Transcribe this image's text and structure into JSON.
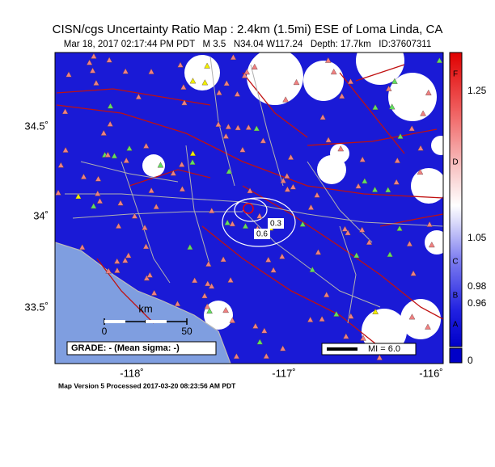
{
  "header": {
    "title": "CISN/cgs Uncertainty Ratio Map : 2.4km (1.5mi) ESE of Loma Linda, CA",
    "subtitle": "Mar 18, 2017 02:17:44 PM PDT   M 3.5   N34.04 W117.24   Depth: 17.7km   ID:37607311"
  },
  "map": {
    "lat_labels": [
      "34.5˚",
      "34˚",
      "33.5˚"
    ],
    "lon_labels": [
      "-118˚",
      "-117˚",
      "-116˚"
    ],
    "contour_labels": [
      "0.3",
      "0.6"
    ],
    "scale": {
      "unit": "km",
      "ticks": [
        "0",
        "50"
      ]
    },
    "grade": "GRADE: - (Mean sigma: -)",
    "mi": "MI = 6.0"
  },
  "colorbar": {
    "letters": [
      "F",
      "D",
      "C",
      "B",
      "A"
    ],
    "values": [
      "1.25",
      "1.05",
      "0.98",
      "0.96",
      "0"
    ]
  },
  "footer": "Map Version 5 Processed 2017-03-20 08:23:56 AM PDT"
}
